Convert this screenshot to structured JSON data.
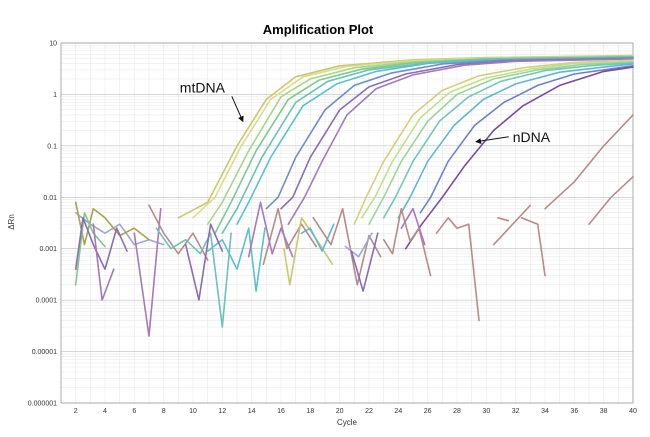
{
  "chart_data": {
    "type": "line",
    "title": "Amplification Plot",
    "xlabel": "Cycle",
    "ylabel": "ΔRn",
    "xlim": [
      1,
      40
    ],
    "ylim": [
      1e-06,
      10
    ],
    "yscale": "log",
    "grid": true,
    "xticks": [
      "2",
      "4",
      "6",
      "8",
      "10",
      "12",
      "14",
      "16",
      "18",
      "20",
      "22",
      "24",
      "26",
      "28",
      "30",
      "32",
      "34",
      "36",
      "38",
      "40"
    ],
    "yticks": [
      "10",
      "1",
      "0.1",
      "0.01",
      "0.001",
      "0.0001",
      "0.00001",
      "0.000001"
    ],
    "annotations": [
      {
        "text": "mtDNA",
        "x": 9.1,
        "y": 1.1,
        "arrow_to": [
          13.4,
          0.3
        ]
      },
      {
        "text": "nDNA",
        "x": 31.8,
        "y": 0.12,
        "arrow_to": [
          29.3,
          0.12
        ],
        "arrow_left": true
      }
    ],
    "series": [
      {
        "color": "#c8c86a",
        "values": [
          [
            9,
            0.004
          ],
          [
            11,
            0.008
          ],
          [
            13,
            0.1
          ],
          [
            15,
            0.8
          ],
          [
            17,
            2.2
          ],
          [
            20,
            3.6
          ],
          [
            25,
            4.7
          ],
          [
            30,
            5.2
          ],
          [
            40,
            5.7
          ]
        ]
      },
      {
        "color": "#d9dc8a",
        "values": [
          [
            10,
            0.004
          ],
          [
            11.5,
            0.01
          ],
          [
            13.3,
            0.1
          ],
          [
            15.3,
            0.8
          ],
          [
            17.5,
            2.2
          ],
          [
            20.5,
            3.5
          ],
          [
            25,
            4.5
          ],
          [
            30,
            5.1
          ],
          [
            40,
            5.6
          ]
        ]
      },
      {
        "color": "#a6d68a",
        "values": [
          [
            11,
            0.003
          ],
          [
            12,
            0.008
          ],
          [
            13.8,
            0.08
          ],
          [
            16,
            0.9
          ],
          [
            18,
            2
          ],
          [
            21,
            3.3
          ],
          [
            25,
            4.3
          ],
          [
            30,
            5
          ],
          [
            40,
            5.5
          ]
        ]
      },
      {
        "color": "#7ec98c",
        "values": [
          [
            11.5,
            0.002
          ],
          [
            12.6,
            0.008
          ],
          [
            14.3,
            0.08
          ],
          [
            16.5,
            0.8
          ],
          [
            18.6,
            1.9
          ],
          [
            21.5,
            3.1
          ],
          [
            25,
            4.1
          ],
          [
            30,
            4.9
          ],
          [
            40,
            5.4
          ]
        ]
      },
      {
        "color": "#6ac3b4",
        "values": [
          [
            12,
            0.002
          ],
          [
            13,
            0.006
          ],
          [
            14.7,
            0.06
          ],
          [
            17,
            0.7
          ],
          [
            19.2,
            1.8
          ],
          [
            22,
            3
          ],
          [
            26,
            4.1
          ],
          [
            30,
            4.8
          ],
          [
            40,
            5.3
          ]
        ]
      },
      {
        "color": "#5bbfd0",
        "values": [
          [
            13,
            0.003
          ],
          [
            13.8,
            0.008
          ],
          [
            15.3,
            0.06
          ],
          [
            17.5,
            0.6
          ],
          [
            19.8,
            1.6
          ],
          [
            22.5,
            2.8
          ],
          [
            26,
            4
          ],
          [
            30,
            4.7
          ],
          [
            40,
            5.2
          ]
        ]
      },
      {
        "color": "#6b8fc9",
        "values": [
          [
            15,
            0.006
          ],
          [
            15.8,
            0.01
          ],
          [
            17,
            0.06
          ],
          [
            19,
            0.5
          ],
          [
            21,
            1.5
          ],
          [
            23.5,
            2.6
          ],
          [
            27,
            3.9
          ],
          [
            31,
            4.6
          ],
          [
            40,
            5.1
          ]
        ]
      },
      {
        "color": "#8a6bb8",
        "values": [
          [
            16,
            0.006
          ],
          [
            16.8,
            0.01
          ],
          [
            18,
            0.06
          ],
          [
            20,
            0.5
          ],
          [
            22,
            1.4
          ],
          [
            24.5,
            2.5
          ],
          [
            28,
            3.8
          ],
          [
            32,
            4.5
          ],
          [
            40,
            5
          ]
        ]
      },
      {
        "color": "#a678bd",
        "values": [
          [
            16.5,
            0.003
          ],
          [
            17.6,
            0.01
          ],
          [
            18.8,
            0.05
          ],
          [
            20.5,
            0.4
          ],
          [
            22.5,
            1.3
          ],
          [
            25,
            2.4
          ],
          [
            28.5,
            3.7
          ],
          [
            32,
            4.4
          ],
          [
            40,
            4.9
          ]
        ]
      },
      {
        "color": "#d4d07a",
        "values": [
          [
            21,
            0.003
          ],
          [
            21.8,
            0.01
          ],
          [
            23,
            0.05
          ],
          [
            25,
            0.4
          ],
          [
            27,
            1.2
          ],
          [
            29.5,
            2.3
          ],
          [
            32.5,
            3.3
          ],
          [
            36,
            4.2
          ],
          [
            40,
            4.6
          ]
        ]
      },
      {
        "color": "#c2e08a",
        "values": [
          [
            21.5,
            0.004
          ],
          [
            22.4,
            0.01
          ],
          [
            23.6,
            0.05
          ],
          [
            25.5,
            0.35
          ],
          [
            27.5,
            1.1
          ],
          [
            30,
            2.1
          ],
          [
            33,
            3.1
          ],
          [
            36,
            4
          ],
          [
            40,
            4.5
          ]
        ]
      },
      {
        "color": "#9ad49a",
        "values": [
          [
            22,
            0.003
          ],
          [
            23,
            0.01
          ],
          [
            24.2,
            0.05
          ],
          [
            26,
            0.3
          ],
          [
            28,
            1
          ],
          [
            30.5,
            2
          ],
          [
            33.5,
            3
          ],
          [
            36.5,
            3.8
          ],
          [
            40,
            4.3
          ]
        ]
      },
      {
        "color": "#70c8b8",
        "values": [
          [
            23,
            0.004
          ],
          [
            23.8,
            0.01
          ],
          [
            25,
            0.05
          ],
          [
            26.8,
            0.3
          ],
          [
            28.8,
            0.9
          ],
          [
            31,
            1.8
          ],
          [
            34,
            2.9
          ],
          [
            37,
            3.6
          ],
          [
            40,
            4.1
          ]
        ]
      },
      {
        "color": "#5fb6d6",
        "values": [
          [
            24,
            0.004
          ],
          [
            24.8,
            0.01
          ],
          [
            26,
            0.05
          ],
          [
            27.8,
            0.25
          ],
          [
            29.8,
            0.8
          ],
          [
            32,
            1.6
          ],
          [
            35,
            2.7
          ],
          [
            38,
            3.4
          ],
          [
            40,
            3.9
          ]
        ]
      },
      {
        "color": "#6a84c8",
        "values": [
          [
            25.5,
            0.005
          ],
          [
            26.2,
            0.01
          ],
          [
            27.4,
            0.05
          ],
          [
            29.2,
            0.25
          ],
          [
            31.2,
            0.7
          ],
          [
            33.5,
            1.5
          ],
          [
            36,
            2.5
          ],
          [
            39,
            3.3
          ],
          [
            40,
            3.6
          ]
        ]
      },
      {
        "color": "#7d4a9c",
        "values": [
          [
            24.5,
            0.001
          ],
          [
            25.6,
            0.003
          ],
          [
            27,
            0.01
          ],
          [
            28.5,
            0.04
          ],
          [
            30.5,
            0.2
          ],
          [
            32.5,
            0.6
          ],
          [
            35,
            1.5
          ],
          [
            38,
            2.8
          ],
          [
            40,
            3.4
          ]
        ]
      },
      {
        "color": "#b98a86",
        "values": [
          [
            34,
            0.006
          ],
          [
            36,
            0.02
          ],
          [
            38,
            0.1
          ],
          [
            40,
            0.4
          ]
        ]
      },
      {
        "color": "#b98a86",
        "values": [
          [
            37,
            0.003
          ],
          [
            38.5,
            0.01
          ],
          [
            40,
            0.025
          ]
        ]
      },
      {
        "color": "#b98a86",
        "values": [
          [
            30.5,
            0.0012
          ],
          [
            33,
            0.007
          ]
        ]
      },
      {
        "color": "#9aa8d6",
        "values": [
          [
            2,
            0.005
          ],
          [
            3,
            0.003
          ],
          [
            4,
            0.002
          ],
          [
            5,
            0.003
          ],
          [
            6,
            0.0012
          ],
          [
            7,
            0.0015
          ],
          [
            8,
            0.0012
          ]
        ]
      },
      {
        "color": "#a9a34a",
        "values": [
          [
            2,
            0.008
          ],
          [
            2.6,
            0.0012
          ],
          [
            3.2,
            0.006
          ],
          [
            4,
            0.004
          ],
          [
            5,
            0.0018
          ],
          [
            6,
            0.0025
          ],
          [
            7,
            0.0015
          ]
        ]
      },
      {
        "color": "#7ec98c",
        "values": [
          [
            2,
            0.0002
          ],
          [
            2.6,
            0.005
          ],
          [
            3.2,
            0.002
          ],
          [
            4,
            0.0011
          ]
        ]
      },
      {
        "color": "#8a6bb8",
        "values": [
          [
            2,
            0.0004
          ],
          [
            2.5,
            0.004
          ],
          [
            3.2,
            0.0012
          ],
          [
            4,
            0.0004
          ],
          [
            4.8,
            0.0025
          ],
          [
            5.5,
            0.0009
          ]
        ]
      },
      {
        "color": "#a678bd",
        "values": [
          [
            3.2,
            0.003
          ],
          [
            3.8,
            0.0001
          ],
          [
            4.6,
            0.0004
          ]
        ]
      },
      {
        "color": "#a678bd",
        "values": [
          [
            6,
            0.002
          ],
          [
            7,
            2e-05
          ],
          [
            7.8,
            0.006
          ]
        ]
      },
      {
        "color": "#b98a86",
        "values": [
          [
            7,
            0.007
          ],
          [
            8,
            0.002
          ],
          [
            9,
            0.0008
          ],
          [
            10,
            0.002
          ],
          [
            11,
            0.0006
          ]
        ]
      },
      {
        "color": "#6ac3b4",
        "values": [
          [
            7.5,
            0.0025
          ],
          [
            8.5,
            0.001
          ],
          [
            9.5,
            0.0015
          ],
          [
            10.5,
            0.0008
          ],
          [
            11.2,
            0.002
          ],
          [
            12,
            3e-05
          ],
          [
            12.6,
            0.002
          ]
        ]
      },
      {
        "color": "#5bbfd0",
        "values": [
          [
            11,
            0.0009
          ],
          [
            12,
            0.0015
          ],
          [
            13,
            0.0004
          ],
          [
            13.8,
            0.0025
          ],
          [
            14.3,
            0.00015
          ],
          [
            14.9,
            0.0025
          ]
        ]
      },
      {
        "color": "#8a6bb8",
        "values": [
          [
            9.5,
            0.0012
          ],
          [
            10.4,
            0.0001
          ],
          [
            11.2,
            0.003
          ],
          [
            12,
            0.0009
          ]
        ]
      },
      {
        "color": "#b98a86",
        "values": [
          [
            14.8,
            0.0005
          ],
          [
            15.8,
            0.006
          ],
          [
            16.4,
            0.001
          ],
          [
            17.4,
            0.003
          ],
          [
            18.4,
            0.0011
          ]
        ]
      },
      {
        "color": "#a678bd",
        "values": [
          [
            13.8,
            0.0007
          ],
          [
            14.6,
            0.008
          ],
          [
            15.4,
            0.0008
          ],
          [
            16,
            0.0025
          ],
          [
            16.8,
            0.0007
          ]
        ]
      },
      {
        "color": "#c8c86a",
        "values": [
          [
            16.2,
            0.001
          ],
          [
            16.6,
            0.0002
          ],
          [
            17.4,
            0.004
          ],
          [
            18.5,
            0.0014
          ],
          [
            19.5,
            0.0005
          ]
        ]
      },
      {
        "color": "#5fb6d6",
        "values": [
          [
            17.4,
            0.002
          ],
          [
            18,
            0.0025
          ],
          [
            18.8,
            0.0009
          ],
          [
            19.6,
            0.003
          ]
        ]
      },
      {
        "color": "#b98a86",
        "values": [
          [
            18.2,
            0.004
          ],
          [
            19.4,
            0.0012
          ],
          [
            20.2,
            0.006
          ],
          [
            21.2,
            0.0002
          ],
          [
            22,
            0.0018
          ],
          [
            22.8,
            0.0007
          ]
        ]
      },
      {
        "color": "#9aa8d6",
        "values": [
          [
            20.4,
            0.0011
          ],
          [
            21.3,
            0.0007
          ],
          [
            22.2,
            0.002
          ]
        ]
      },
      {
        "color": "#8a6bb8",
        "values": [
          [
            20.8,
            0.0009
          ],
          [
            21.6,
            0.00015
          ],
          [
            22.6,
            0.002
          ]
        ]
      },
      {
        "color": "#b98a86",
        "values": [
          [
            23,
            0.0015
          ],
          [
            23.6,
            0.0008
          ],
          [
            24.2,
            0.006
          ],
          [
            24.8,
            0.0014
          ],
          [
            25.4,
            0.0025
          ],
          [
            26.2,
            0.0003
          ]
        ]
      },
      {
        "color": "#a678bd",
        "values": [
          [
            24.2,
            0.0025
          ],
          [
            25,
            0.006
          ],
          [
            25.8,
            0.0012
          ]
        ]
      },
      {
        "color": "#b98a86",
        "values": [
          [
            26.6,
            0.002
          ],
          [
            27.4,
            0.004
          ],
          [
            28,
            0.0025
          ],
          [
            28.8,
            0.003
          ],
          [
            29.5,
            4e-05
          ]
        ]
      },
      {
        "color": "#b98a86",
        "values": [
          [
            30.8,
            0.004
          ],
          [
            31.5,
            0.0035
          ]
        ]
      },
      {
        "color": "#b98a86",
        "values": [
          [
            32.4,
            0.004
          ],
          [
            33.5,
            0.003
          ],
          [
            34,
            0.0003
          ]
        ]
      }
    ]
  }
}
